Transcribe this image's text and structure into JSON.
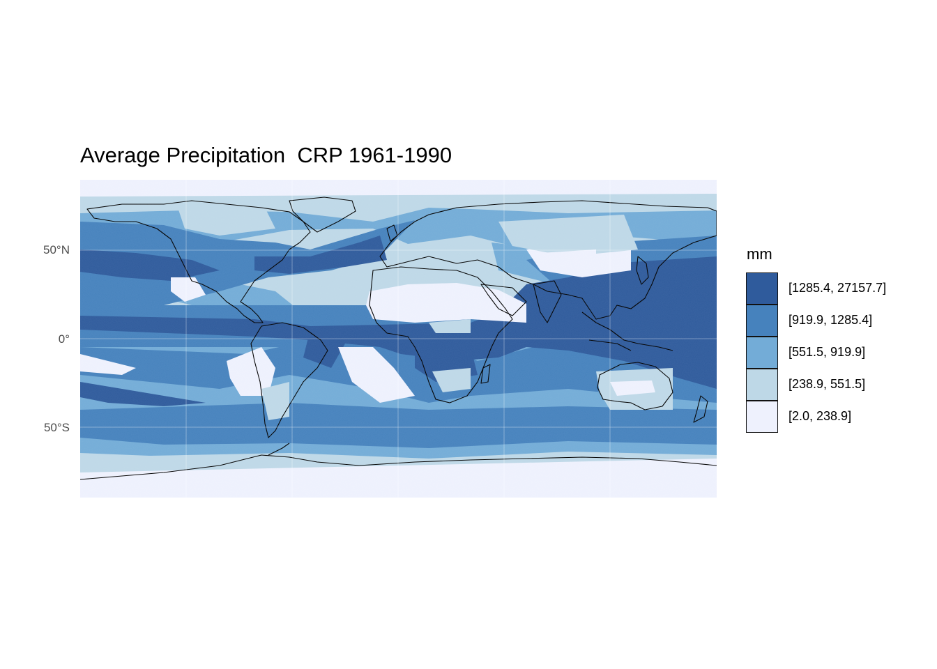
{
  "title": "Average Precipitation  CRP 1961-1990",
  "y_axis": {
    "tick_labels": [
      "50°N",
      "0°",
      "50°S"
    ],
    "tick_latitudes": [
      50,
      0,
      -50
    ]
  },
  "legend": {
    "title": "mm",
    "classes": [
      {
        "label": "[1285.4, 27157.7]",
        "color": "#2f5b9c"
      },
      {
        "label": "[919.9, 1285.4]",
        "color": "#4682bd"
      },
      {
        "label": "[551.5, 919.9]",
        "color": "#73acd7"
      },
      {
        "label": "[238.9, 551.5]",
        "color": "#bed8e7"
      },
      {
        "label": "[2.0, 238.9]",
        "color": "#eef1fd"
      }
    ]
  },
  "map": {
    "lon_range": [
      -180,
      180
    ],
    "lat_range": [
      -90,
      90
    ],
    "background_color": "#eef1fd",
    "coastline_color": "#000000"
  }
}
